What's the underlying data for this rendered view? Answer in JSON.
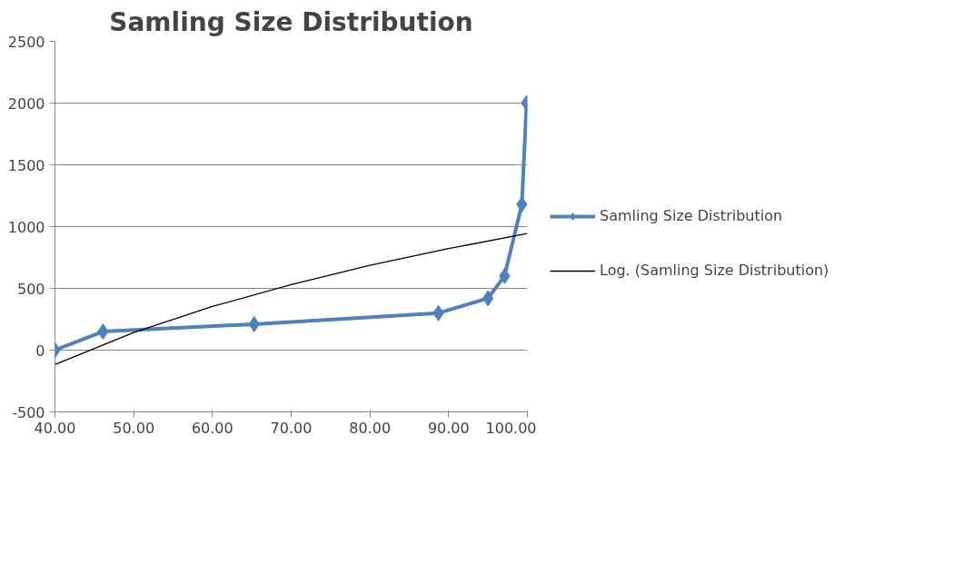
{
  "chart_data": {
    "type": "line",
    "title": "Samling Size Distribution",
    "xlim": [
      40,
      100
    ],
    "xticks": [
      {
        "value": 40,
        "label": "40.00"
      },
      {
        "value": 50,
        "label": "50.00"
      },
      {
        "value": 60,
        "label": "60.00"
      },
      {
        "value": 70,
        "label": "70.00"
      },
      {
        "value": 80,
        "label": "80.00"
      },
      {
        "value": 90,
        "label": "90.00"
      },
      {
        "value": 100,
        "label": "100.00"
      }
    ],
    "ylim": [
      -500,
      2500
    ],
    "yticks": [
      -500,
      0,
      500,
      1000,
      1500,
      2000,
      2500
    ],
    "grid": "y",
    "legend": "right",
    "series": [
      {
        "name": "Samling Size Distribution",
        "color": "#4f81bd",
        "marker": "diamond",
        "line_style": "solid",
        "x": [
          40,
          46.1,
          65.3,
          88.7,
          95.0,
          97.1,
          99.3,
          99.9
        ],
        "values": [
          0,
          150,
          210,
          300,
          420,
          600,
          1180,
          2000
        ]
      },
      {
        "name": "Log. (Samling Size Distribution)",
        "color": "#000000",
        "marker": "none",
        "line_style": "solid",
        "x": [
          40,
          50,
          60,
          70,
          80,
          90,
          100
        ],
        "values": [
          -116,
          142,
          353,
          531,
          686,
          822,
          944
        ]
      }
    ]
  }
}
